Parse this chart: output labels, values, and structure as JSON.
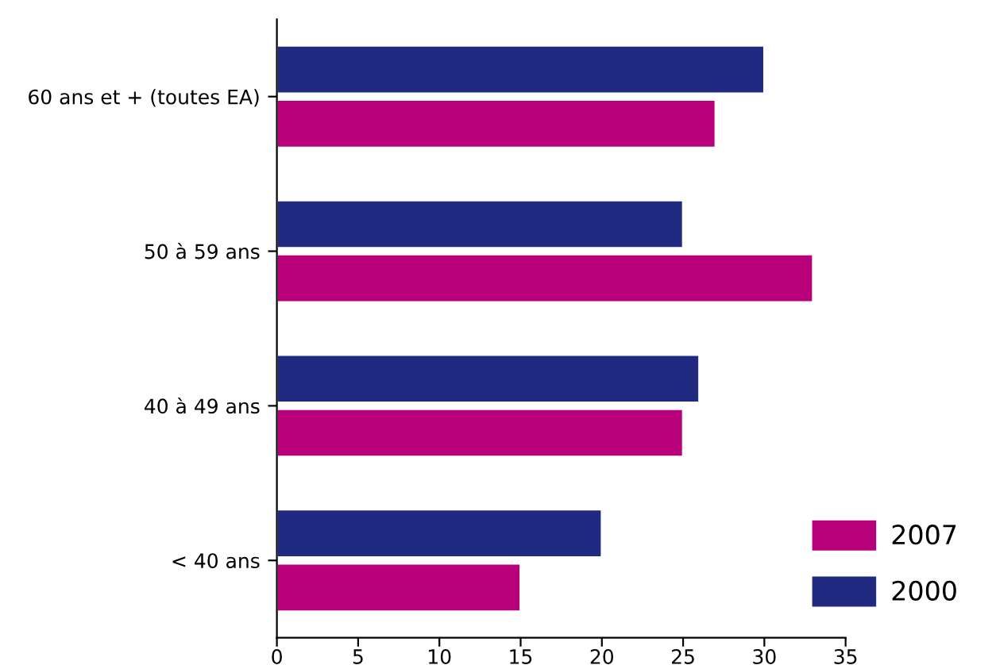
{
  "chart_data": {
    "type": "bar",
    "orientation": "horizontal",
    "categories": [
      "60 ans et + (toutes EA)",
      "50 à 59 ans",
      "40 à 49 ans",
      "< 40 ans"
    ],
    "series": [
      {
        "name": "2000",
        "color": "#1f2a80",
        "values": [
          30,
          25,
          26,
          20
        ]
      },
      {
        "name": "2007",
        "color": "#b8007a",
        "values": [
          27,
          33,
          25,
          15
        ]
      }
    ],
    "xlim": [
      0,
      35
    ],
    "xticks": [
      0,
      5,
      10,
      15,
      20,
      25,
      30,
      35
    ],
    "grid": false,
    "legend": "bottom right"
  }
}
